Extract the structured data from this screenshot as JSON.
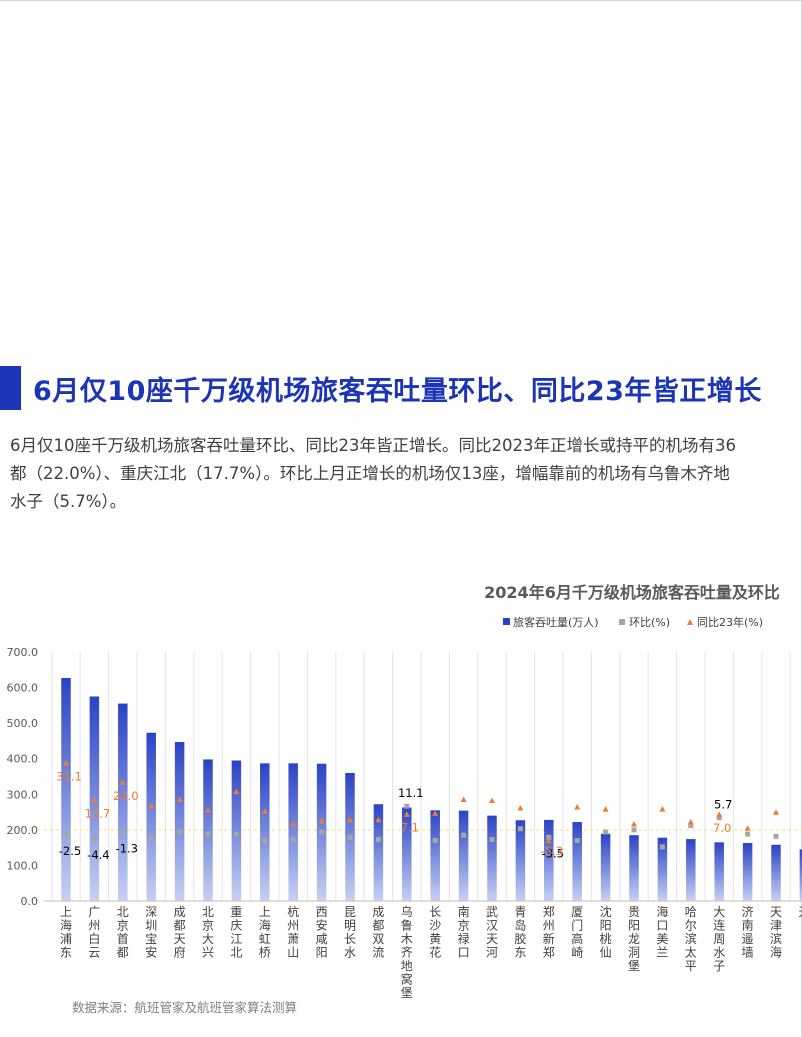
{
  "section": {
    "title": "6月仅10座千万级机场旅客吞吐量环比、同比23年皆正增长"
  },
  "body_lines": [
    "6月仅10座千万级机场旅客吞吐量环比、同比23年皆正增长。同比2023年正增长或持平的机场有36",
    "都（22.0%）、重庆江北（17.7%）。环比上月正增长的机场仅13座，增幅靠前的机场有乌鲁木齐地",
    "水子（5.7%）。"
  ],
  "source_note": "数据来源：航班管家及航班管家算法测算",
  "colors": {
    "accent": "#1c35b7",
    "bar_top": "#2a43c4",
    "bar_bottom": "#c7d1f2",
    "mom_marker": "#a6a6a6",
    "yoy_marker": "#ed7d31",
    "ref_line": "#ffd966",
    "grid": "#e3e3e3"
  },
  "chart_data": {
    "type": "bar",
    "title": "2024年6月千万级机场旅客吞吐量及环比",
    "ylim": [
      0,
      700
    ],
    "yticks": [
      "0.0",
      "100.0",
      "200.0",
      "300.0",
      "400.0",
      "500.0",
      "600.0",
      "700.0"
    ],
    "grid": "vertical",
    "legend_position": "top-right",
    "legend": [
      "旅客吞吐量(万人)",
      "环比(%)",
      "同比23年(%)"
    ],
    "categories": [
      "上海浦东",
      "广州白云",
      "北京首都",
      "深圳宝安",
      "成都天府",
      "北京大兴",
      "重庆江北",
      "上海虹桥",
      "杭州萧山",
      "西安咸阳",
      "昆明长水",
      "成都双流",
      "乌鲁木齐地窝堡",
      "长沙黄花",
      "南京禄口",
      "武汉天河",
      "青岛胶东",
      "郑州新郑",
      "厦门高崎",
      "沈阳桃仙",
      "贵阳龙洞堡",
      "海口美兰",
      "哈尔滨太平",
      "大连周水子",
      "济南遥墙",
      "天津滨海",
      "天"
    ],
    "series": [
      {
        "name": "旅客吞吐量(万人)",
        "values": [
          627,
          575,
          555,
          473,
          447,
          398,
          395,
          387,
          387,
          386,
          360,
          272,
          263,
          255,
          254,
          240,
          227,
          228,
          222,
          189,
          185,
          178,
          174,
          165,
          163,
          158,
          145
        ]
      },
      {
        "name": "环比(%)",
        "values": [
          -2.5,
          -4.4,
          -1.3,
          -4.0,
          -1.0,
          -2.0,
          -2.0,
          -5.0,
          -4.5,
          -1.0,
          -3.5,
          -4.5,
          11.1,
          -5.0,
          -2.5,
          -4.5,
          0.5,
          -3.5,
          -5.0,
          -1.0,
          0.0,
          -8.0,
          2.0,
          5.7,
          -2.0,
          -3.0,
          null
        ],
        "data_labels": [
          "-2.5",
          "-4.4",
          "-1.3",
          "",
          "",
          "",
          "",
          "",
          "",
          "",
          "",
          "",
          "11.1",
          "",
          "",
          "",
          "",
          "-3.5",
          "",
          "",
          "",
          "",
          "",
          "5.7",
          "",
          "",
          ""
        ]
      },
      {
        "name": "同比23年(%)",
        "values": [
          31.1,
          13.7,
          22.0,
          11.0,
          14.0,
          9.0,
          17.7,
          8.5,
          2.5,
          4.0,
          4.5,
          4.5,
          7.1,
          7.5,
          14.0,
          13.5,
          10.0,
          -5.3,
          10.5,
          9.5,
          2.5,
          9.5,
          3.5,
          7.0,
          0.5,
          8.0,
          null
        ],
        "data_labels": [
          "31.1",
          "13.7",
          "22.0",
          "",
          "",
          "",
          "",
          "",
          "",
          "",
          "",
          "",
          "7.1",
          "",
          "",
          "",
          "",
          "-5.3",
          "",
          "",
          "",
          "",
          "",
          "7.0",
          "",
          "",
          ""
        ]
      }
    ]
  }
}
